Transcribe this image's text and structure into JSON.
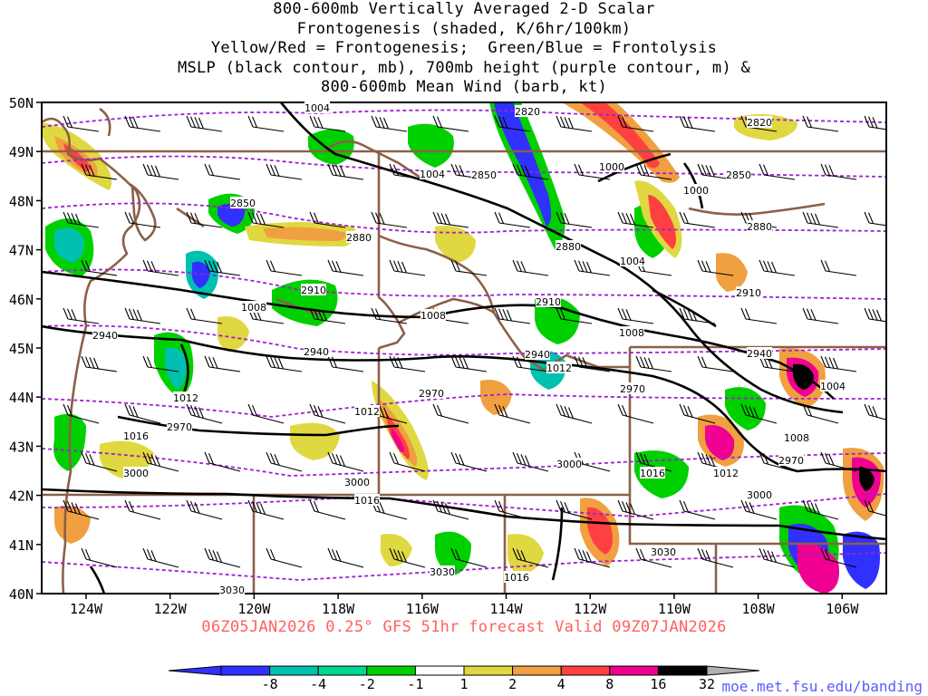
{
  "title_lines": [
    "800-600mb Vertically Averaged 2-D Scalar",
    "Frontogenesis (shaded, K/6hr/100km)",
    "Yellow/Red = Frontogenesis;  Green/Blue = Frontolysis",
    "MSLP (black contour, mb), 700mb height (purple contour, m) &",
    "800-600mb Mean Wind (barb, kt)"
  ],
  "valid_text": "06Z05JAN2026 0.25° GFS 51hr forecast Valid 09Z07JAN2026",
  "credit_text": "moe.met.fsu.edu/banding",
  "lat_labels": [
    "50N",
    "49N",
    "48N",
    "47N",
    "46N",
    "45N",
    "44N",
    "43N",
    "42N",
    "41N",
    "40N"
  ],
  "lon_labels": [
    "124W",
    "122W",
    "120W",
    "118W",
    "116W",
    "114W",
    "112W",
    "110W",
    "108W",
    "106W"
  ],
  "colorbar": {
    "labels": [
      "-8",
      "-4",
      "-2",
      "-1",
      "1",
      "2",
      "4",
      "8",
      "16",
      "32"
    ],
    "colors": [
      "#3030ff",
      "#00c0b0",
      "#00d890",
      "#00d000",
      "#ffffff",
      "#e0d840",
      "#f0a040",
      "#ff4040",
      "#f00090",
      "#000000"
    ],
    "low_arrow_color": "#3030ff",
    "high_arrow_color": "#b0b0b0"
  },
  "map_labels": {
    "mslp": [
      "1004",
      "1004",
      "1000",
      "1000",
      "1004",
      "1008",
      "1008",
      "1008",
      "1008",
      "1012",
      "1012",
      "1012",
      "1016",
      "1016",
      "1016",
      "1016",
      "1004",
      "1008",
      "1012",
      "1016"
    ],
    "height": [
      "2820",
      "2820",
      "2850",
      "2850",
      "2850",
      "2880",
      "2880",
      "2880",
      "2910",
      "2910",
      "2910",
      "2940",
      "2940",
      "2940",
      "2940",
      "2970",
      "2970",
      "2970",
      "2970",
      "3000",
      "3000",
      "3000",
      "3000",
      "3030",
      "3030",
      "3030"
    ]
  }
}
